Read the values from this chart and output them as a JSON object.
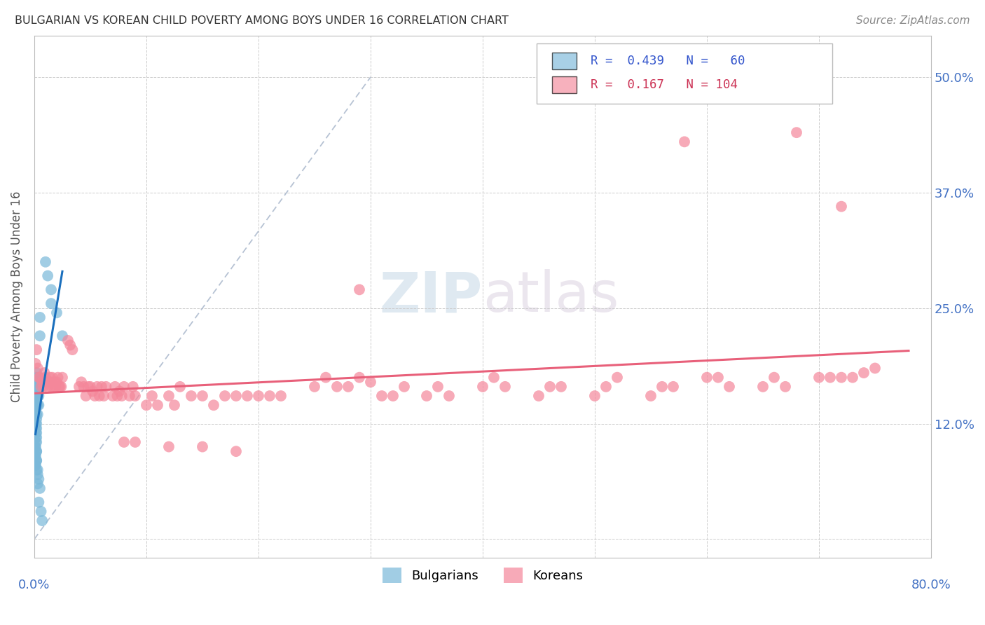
{
  "title": "BULGARIAN VS KOREAN CHILD POVERTY AMONG BOYS UNDER 16 CORRELATION CHART",
  "source": "Source: ZipAtlas.com",
  "ylabel": "Child Poverty Among Boys Under 16",
  "ytick_values": [
    0.0,
    0.125,
    0.25,
    0.375,
    0.5
  ],
  "xlim": [
    0.0,
    0.8
  ],
  "ylim": [
    -0.02,
    0.545
  ],
  "watermark": "ZIPatlas",
  "bulgarian_color": "#7ab8d9",
  "korean_color": "#f4879a",
  "bg_color": "#ffffff",
  "grid_color": "#cccccc",
  "trend_line_bulgarian_color": "#1a6fbd",
  "trend_line_korean_color": "#e8607a",
  "diagonal_dashed_color": "#aab8cc",
  "bulgarian_scatter": [
    [
      0.001,
      0.155
    ],
    [
      0.001,
      0.145
    ],
    [
      0.001,
      0.135
    ],
    [
      0.001,
      0.12
    ],
    [
      0.001,
      0.11
    ],
    [
      0.001,
      0.1
    ],
    [
      0.001,
      0.095
    ],
    [
      0.001,
      0.09
    ],
    [
      0.001,
      0.085
    ],
    [
      0.001,
      0.08
    ],
    [
      0.002,
      0.17
    ],
    [
      0.002,
      0.155
    ],
    [
      0.002,
      0.145
    ],
    [
      0.002,
      0.135
    ],
    [
      0.002,
      0.125
    ],
    [
      0.002,
      0.115
    ],
    [
      0.002,
      0.105
    ],
    [
      0.002,
      0.095
    ],
    [
      0.002,
      0.085
    ],
    [
      0.002,
      0.075
    ],
    [
      0.003,
      0.165
    ],
    [
      0.003,
      0.155
    ],
    [
      0.003,
      0.145
    ],
    [
      0.003,
      0.135
    ],
    [
      0.003,
      0.06
    ],
    [
      0.004,
      0.155
    ],
    [
      0.004,
      0.145
    ],
    [
      0.004,
      0.04
    ],
    [
      0.005,
      0.24
    ],
    [
      0.005,
      0.22
    ],
    [
      0.006,
      0.03
    ],
    [
      0.007,
      0.02
    ],
    [
      0.01,
      0.3
    ],
    [
      0.012,
      0.285
    ],
    [
      0.015,
      0.27
    ],
    [
      0.015,
      0.255
    ],
    [
      0.02,
      0.245
    ],
    [
      0.025,
      0.22
    ],
    [
      0.001,
      0.175
    ],
    [
      0.001,
      0.165
    ],
    [
      0.002,
      0.18
    ],
    [
      0.003,
      0.175
    ],
    [
      0.001,
      0.155
    ],
    [
      0.002,
      0.165
    ],
    [
      0.001,
      0.14
    ],
    [
      0.002,
      0.13
    ],
    [
      0.001,
      0.125
    ],
    [
      0.002,
      0.12
    ],
    [
      0.001,
      0.115
    ],
    [
      0.002,
      0.11
    ],
    [
      0.001,
      0.105
    ],
    [
      0.001,
      0.1
    ],
    [
      0.002,
      0.095
    ],
    [
      0.001,
      0.09
    ],
    [
      0.002,
      0.085
    ],
    [
      0.001,
      0.08
    ],
    [
      0.003,
      0.075
    ],
    [
      0.003,
      0.07
    ],
    [
      0.004,
      0.065
    ],
    [
      0.005,
      0.055
    ]
  ],
  "korean_scatter": [
    [
      0.001,
      0.19
    ],
    [
      0.002,
      0.205
    ],
    [
      0.003,
      0.185
    ],
    [
      0.004,
      0.175
    ],
    [
      0.005,
      0.175
    ],
    [
      0.006,
      0.165
    ],
    [
      0.007,
      0.17
    ],
    [
      0.008,
      0.165
    ],
    [
      0.009,
      0.18
    ],
    [
      0.01,
      0.17
    ],
    [
      0.01,
      0.175
    ],
    [
      0.012,
      0.165
    ],
    [
      0.013,
      0.17
    ],
    [
      0.014,
      0.175
    ],
    [
      0.015,
      0.165
    ],
    [
      0.015,
      0.17
    ],
    [
      0.016,
      0.175
    ],
    [
      0.017,
      0.165
    ],
    [
      0.018,
      0.17
    ],
    [
      0.019,
      0.165
    ],
    [
      0.02,
      0.17
    ],
    [
      0.021,
      0.175
    ],
    [
      0.022,
      0.165
    ],
    [
      0.023,
      0.165
    ],
    [
      0.024,
      0.165
    ],
    [
      0.025,
      0.175
    ],
    [
      0.03,
      0.215
    ],
    [
      0.032,
      0.21
    ],
    [
      0.034,
      0.205
    ],
    [
      0.04,
      0.165
    ],
    [
      0.042,
      0.17
    ],
    [
      0.044,
      0.165
    ],
    [
      0.046,
      0.155
    ],
    [
      0.048,
      0.165
    ],
    [
      0.05,
      0.165
    ],
    [
      0.052,
      0.16
    ],
    [
      0.054,
      0.155
    ],
    [
      0.056,
      0.165
    ],
    [
      0.058,
      0.155
    ],
    [
      0.06,
      0.165
    ],
    [
      0.062,
      0.155
    ],
    [
      0.064,
      0.165
    ],
    [
      0.07,
      0.155
    ],
    [
      0.072,
      0.165
    ],
    [
      0.074,
      0.155
    ],
    [
      0.076,
      0.16
    ],
    [
      0.078,
      0.155
    ],
    [
      0.08,
      0.165
    ],
    [
      0.085,
      0.155
    ],
    [
      0.088,
      0.165
    ],
    [
      0.09,
      0.155
    ],
    [
      0.1,
      0.145
    ],
    [
      0.105,
      0.155
    ],
    [
      0.11,
      0.145
    ],
    [
      0.12,
      0.155
    ],
    [
      0.125,
      0.145
    ],
    [
      0.13,
      0.165
    ],
    [
      0.14,
      0.155
    ],
    [
      0.15,
      0.155
    ],
    [
      0.16,
      0.145
    ],
    [
      0.17,
      0.155
    ],
    [
      0.18,
      0.155
    ],
    [
      0.19,
      0.155
    ],
    [
      0.2,
      0.155
    ],
    [
      0.21,
      0.155
    ],
    [
      0.22,
      0.155
    ],
    [
      0.25,
      0.165
    ],
    [
      0.26,
      0.175
    ],
    [
      0.27,
      0.165
    ],
    [
      0.28,
      0.165
    ],
    [
      0.29,
      0.175
    ],
    [
      0.3,
      0.17
    ],
    [
      0.31,
      0.155
    ],
    [
      0.32,
      0.155
    ],
    [
      0.33,
      0.165
    ],
    [
      0.35,
      0.155
    ],
    [
      0.36,
      0.165
    ],
    [
      0.37,
      0.155
    ],
    [
      0.4,
      0.165
    ],
    [
      0.41,
      0.175
    ],
    [
      0.42,
      0.165
    ],
    [
      0.45,
      0.155
    ],
    [
      0.46,
      0.165
    ],
    [
      0.47,
      0.165
    ],
    [
      0.5,
      0.155
    ],
    [
      0.51,
      0.165
    ],
    [
      0.52,
      0.175
    ],
    [
      0.55,
      0.155
    ],
    [
      0.56,
      0.165
    ],
    [
      0.57,
      0.165
    ],
    [
      0.6,
      0.175
    ],
    [
      0.61,
      0.175
    ],
    [
      0.62,
      0.165
    ],
    [
      0.65,
      0.165
    ],
    [
      0.66,
      0.175
    ],
    [
      0.67,
      0.165
    ],
    [
      0.7,
      0.175
    ],
    [
      0.71,
      0.175
    ],
    [
      0.72,
      0.175
    ],
    [
      0.73,
      0.175
    ],
    [
      0.74,
      0.18
    ],
    [
      0.75,
      0.185
    ],
    [
      0.29,
      0.27
    ],
    [
      0.58,
      0.43
    ],
    [
      0.68,
      0.44
    ],
    [
      0.72,
      0.36
    ],
    [
      0.08,
      0.105
    ],
    [
      0.09,
      0.105
    ],
    [
      0.12,
      0.1
    ],
    [
      0.15,
      0.1
    ],
    [
      0.18,
      0.095
    ]
  ]
}
